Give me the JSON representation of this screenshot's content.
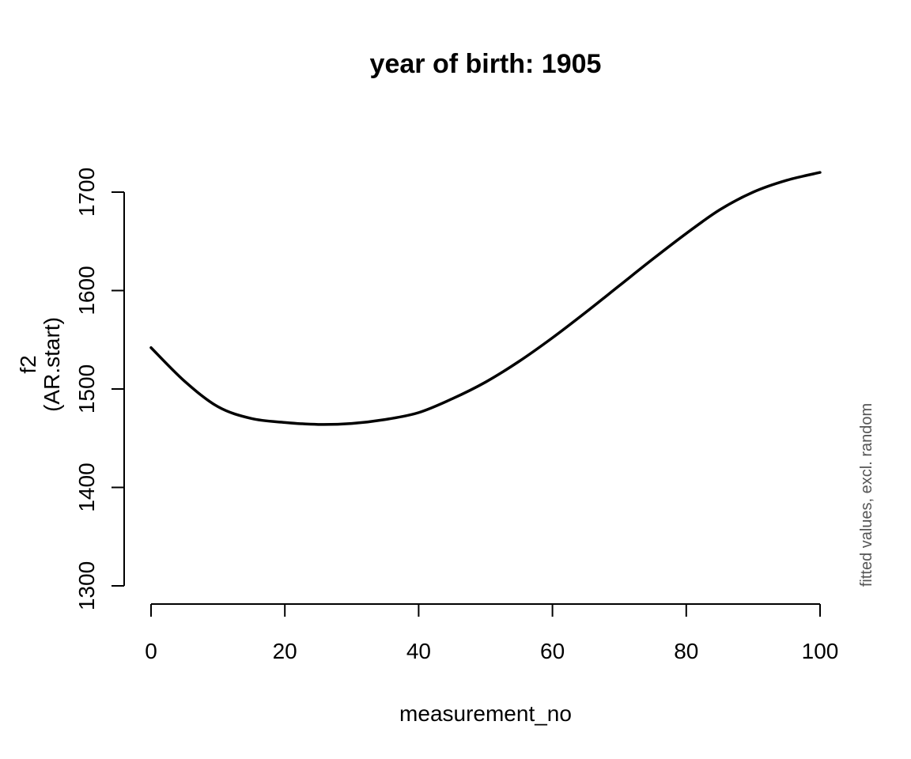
{
  "chart_data": {
    "type": "line",
    "title": "year of birth: 1905",
    "xlabel": "measurement_no",
    "ylabel_lines": [
      "f2",
      "(AR.start)"
    ],
    "side_note": "fitted values, excl. random",
    "xlim": [
      0,
      100
    ],
    "ylim": [
      1300,
      1700
    ],
    "x_ticks": [
      0,
      20,
      40,
      60,
      80,
      100
    ],
    "y_ticks": [
      1300,
      1400,
      1500,
      1600,
      1700
    ],
    "grid": false,
    "series": [
      {
        "color": "#000000",
        "x": [
          0,
          5,
          10,
          15,
          20,
          25,
          30,
          35,
          40,
          45,
          50,
          55,
          60,
          65,
          70,
          75,
          80,
          85,
          90,
          95,
          100
        ],
        "y": [
          1542,
          1508,
          1482,
          1470,
          1466,
          1464,
          1465,
          1469,
          1476,
          1490,
          1507,
          1528,
          1552,
          1578,
          1605,
          1632,
          1658,
          1682,
          1700,
          1712,
          1720
        ]
      }
    ]
  }
}
